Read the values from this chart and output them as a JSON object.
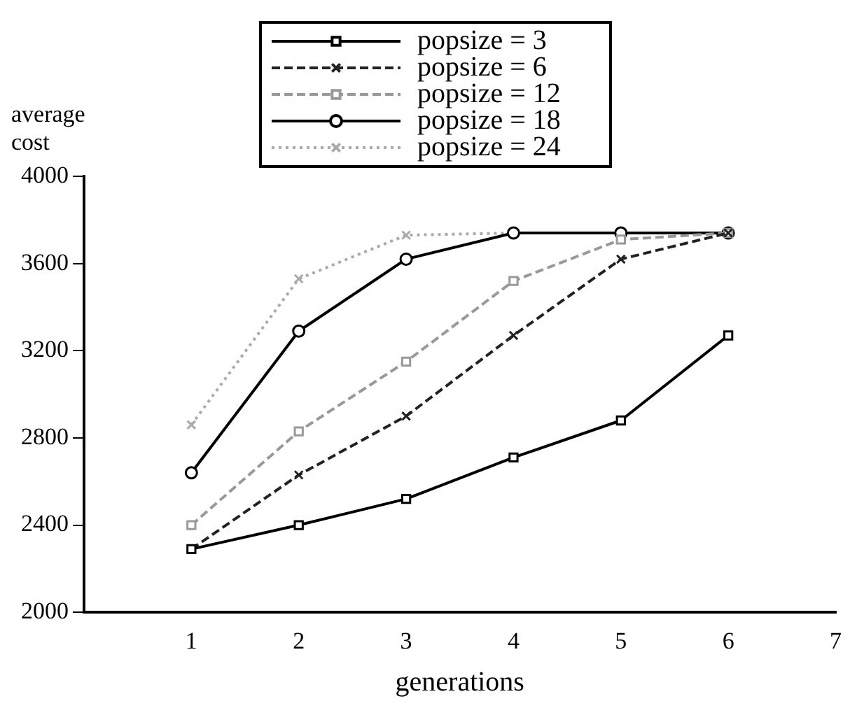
{
  "chart_data": {
    "type": "line",
    "xlabel": "generations",
    "ylabel": "average cost",
    "x": [
      1,
      2,
      3,
      4,
      5,
      6
    ],
    "xlim": [
      0,
      7
    ],
    "xticks": [
      {
        "value": 0,
        "label": null
      },
      1,
      2,
      3,
      4,
      5,
      6,
      7
    ],
    "ylim": [
      2000,
      4000
    ],
    "yticks": [
      2000,
      2400,
      2800,
      3200,
      3600,
      4000
    ],
    "legend": "top",
    "grid": false,
    "series": [
      {
        "name": "popsize = 3",
        "color": "#000000",
        "line_style": "solid",
        "marker": "square",
        "values": [
          2290,
          2400,
          2520,
          2710,
          2880,
          3270
        ]
      },
      {
        "name": "popsize = 6",
        "color": "#222222",
        "line_style": "dashed",
        "marker": "cross",
        "values": [
          2290,
          2630,
          2900,
          3270,
          3620,
          3740
        ]
      },
      {
        "name": "popsize = 12",
        "color": "#999999",
        "line_style": "dashed",
        "marker": "square",
        "values": [
          2400,
          2830,
          3150,
          3520,
          3710,
          3740
        ]
      },
      {
        "name": "popsize = 18",
        "color": "#000000",
        "line_style": "solid",
        "marker": "circle",
        "values": [
          2640,
          3290,
          3620,
          3740,
          3740,
          3740
        ]
      },
      {
        "name": "popsize = 24",
        "color": "#aaaaaa",
        "line_style": "dotted",
        "marker": "cross",
        "values": [
          2860,
          3530,
          3730,
          3740,
          3740,
          3740
        ]
      }
    ]
  }
}
